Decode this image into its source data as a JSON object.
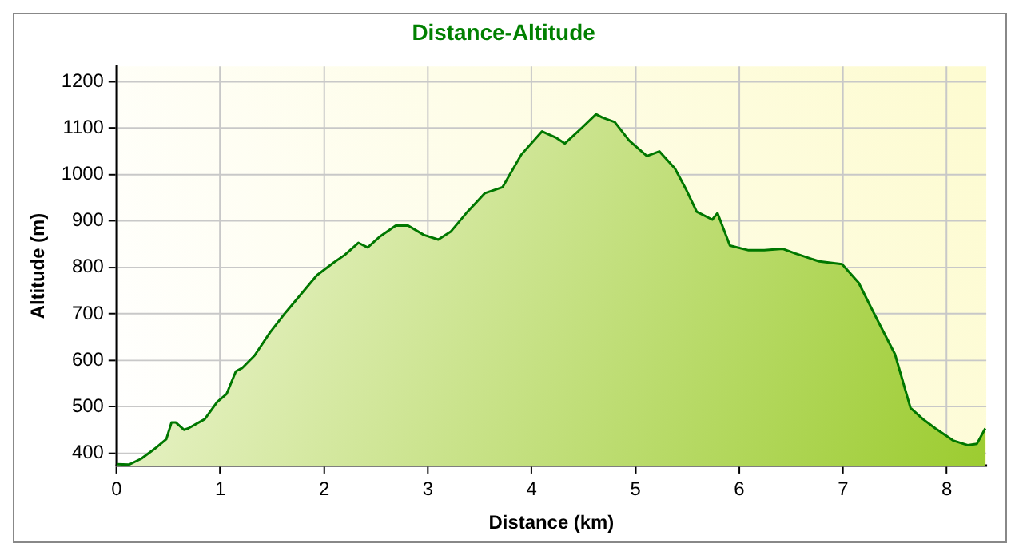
{
  "chart_data": {
    "type": "area",
    "title": "Distance-Altitude",
    "xlabel": "Distance (km)",
    "ylabel": "Altitude (m)",
    "xlim": [
      0,
      8.38
    ],
    "xticks": [
      0,
      1,
      2,
      3,
      4,
      5,
      6,
      7,
      8
    ],
    "ylim": [
      373,
      1233
    ],
    "yticks": [
      400,
      500,
      600,
      700,
      800,
      900,
      1000,
      1100,
      1200
    ],
    "grid": true,
    "legend": false,
    "series": [
      {
        "color": "#007700",
        "x": [
          0,
          0.12,
          0.24,
          0.39,
          0.48,
          0.53,
          0.57,
          0.65,
          0.69,
          0.85,
          0.97,
          1.06,
          1.15,
          1.21,
          1.33,
          1.48,
          1.63,
          1.78,
          1.93,
          2.09,
          2.2,
          2.33,
          2.42,
          2.54,
          2.69,
          2.81,
          2.96,
          3.1,
          3.22,
          3.37,
          3.55,
          3.72,
          3.9,
          4.1,
          4.23,
          4.32,
          4.48,
          4.62,
          4.68,
          4.8,
          4.94,
          5.11,
          5.23,
          5.38,
          5.49,
          5.59,
          5.74,
          5.79,
          5.91,
          6.09,
          6.24,
          6.42,
          6.54,
          6.77,
          6.99,
          7.15,
          7.3,
          7.5,
          7.65,
          7.77,
          7.89,
          8.06,
          8.2,
          8.29,
          8.37
        ],
        "values": [
          376,
          375,
          388,
          413,
          430,
          466,
          466,
          450,
          453,
          473,
          510,
          527,
          576,
          583,
          610,
          660,
          703,
          743,
          783,
          810,
          827,
          853,
          843,
          867,
          890,
          890,
          870,
          860,
          877,
          917,
          960,
          973,
          1043,
          1093,
          1080,
          1067,
          1100,
          1130,
          1123,
          1113,
          1073,
          1040,
          1050,
          1013,
          967,
          920,
          903,
          917,
          847,
          837,
          837,
          840,
          830,
          813,
          807,
          767,
          700,
          613,
          497,
          473,
          453,
          427,
          417,
          420,
          453
        ]
      }
    ]
  }
}
